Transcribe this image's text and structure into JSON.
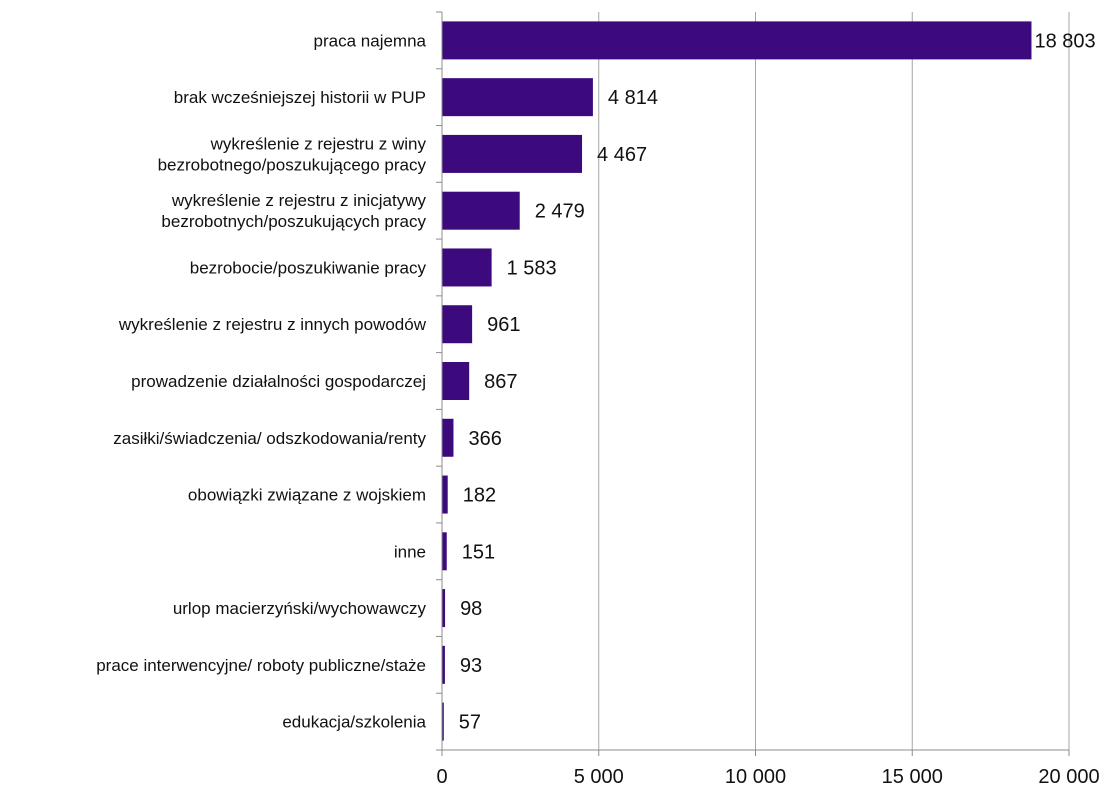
{
  "chart_data": {
    "type": "bar",
    "orientation": "horizontal",
    "categories": [
      [
        "praca najemna"
      ],
      [
        "brak wcześniejszej historii w PUP"
      ],
      [
        "wykreślenie z rejestru z winy",
        "bezrobotnego/poszukującego pracy"
      ],
      [
        "wykreślenie z rejestru z inicjatywy",
        "bezrobotnych/poszukujących pracy"
      ],
      [
        "bezrobocie/poszukiwanie pracy"
      ],
      [
        "wykreślenie z rejestru z innych powodów"
      ],
      [
        "prowadzenie działalności gospodarczej"
      ],
      [
        "zasiłki/świadczenia/ odszkodowania/renty"
      ],
      [
        "obowiązki związane z wojskiem"
      ],
      [
        "inne"
      ],
      [
        "urlop macierzyński/wychowawczy"
      ],
      [
        "prace interwencyjne/ roboty publiczne/staże"
      ],
      [
        "edukacja/szkolenia"
      ]
    ],
    "values": [
      18803,
      4814,
      4467,
      2479,
      1583,
      961,
      867,
      366,
      182,
      151,
      98,
      93,
      57
    ],
    "value_labels": [
      "18 803",
      "4 814",
      "4 467",
      "2 479",
      "1 583",
      "961",
      "867",
      "366",
      "182",
      "151",
      "98",
      "93",
      "57"
    ],
    "xlim": [
      0,
      20000
    ],
    "xticks": [
      0,
      5000,
      10000,
      15000,
      20000
    ],
    "xtick_labels": [
      "0",
      "5 000",
      "10 000",
      "15 000",
      "20 000"
    ],
    "grid": true,
    "legend": "none",
    "bar_color": "#3D0A7E",
    "grid_color": "#A6A6A6",
    "axis_color": "#8C8C8C",
    "title": "",
    "xlabel": "",
    "ylabel": ""
  }
}
